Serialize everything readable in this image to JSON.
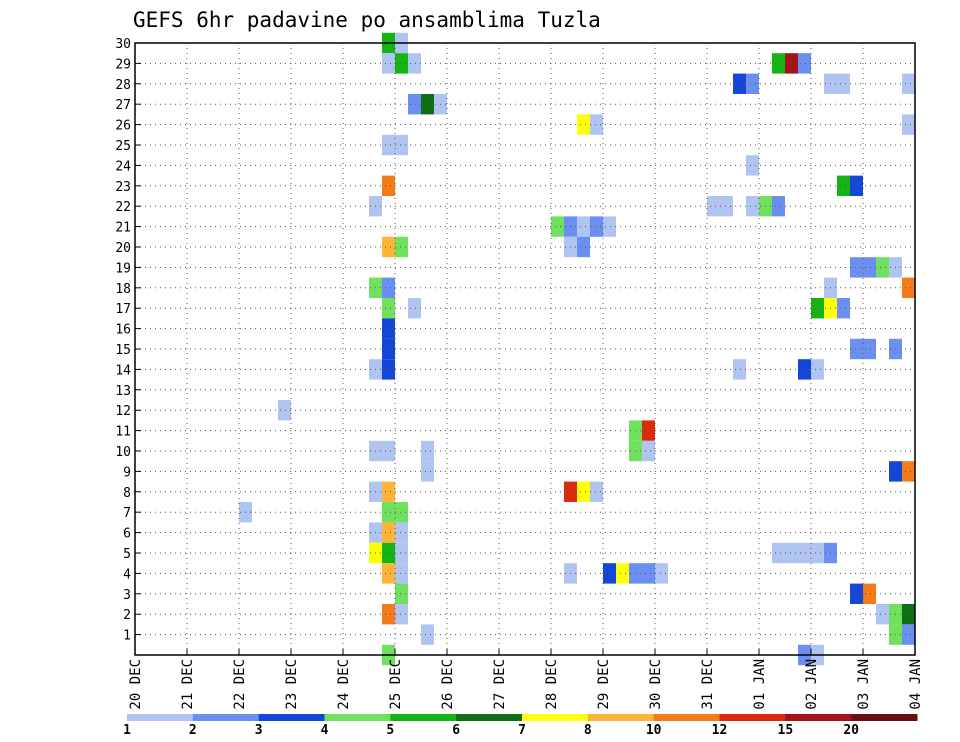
{
  "chart_data": {
    "type": "heatmap",
    "title": "GEFS 6hr padavine po ansamblima Tuzla",
    "xlabel": "",
    "ylabel": "",
    "x_ticks": [
      "20 DEC",
      "21 DEC",
      "22 DEC",
      "23 DEC",
      "24 DEC",
      "25 DEC",
      "26 DEC",
      "27 DEC",
      "28 DEC",
      "29 DEC",
      "30 DEC",
      "31 DEC",
      "01 JAN",
      "02 JAN",
      "03 JAN",
      "04 JAN"
    ],
    "y_ticks": [
      1,
      2,
      3,
      4,
      5,
      6,
      7,
      8,
      9,
      10,
      11,
      12,
      13,
      14,
      15,
      16,
      17,
      18,
      19,
      20,
      21,
      22,
      23,
      24,
      25,
      26,
      27,
      28,
      29,
      30
    ],
    "xlim_days": [
      0,
      15
    ],
    "ylim": [
      0,
      30
    ],
    "grid": true,
    "legend_position": "bottom",
    "color_scale": {
      "colors": [
        "#b0c4f2",
        "#6a8ff0",
        "#1446d8",
        "#6fe15e",
        "#14b414",
        "#0f6e16",
        "#ffff0a",
        "#ffb337",
        "#f47b1a",
        "#db2a0c",
        "#a4121a",
        "#6a0f12"
      ],
      "labels": [
        "1",
        "2",
        "3",
        "4",
        "5",
        "6",
        "7",
        "8",
        "10",
        "12",
        "15",
        "20"
      ]
    },
    "cells": [
      {
        "t": 4.75,
        "m": 30,
        "c": 4
      },
      {
        "t": 5.0,
        "m": 30,
        "c": 0
      },
      {
        "t": 4.75,
        "m": 29,
        "c": 0
      },
      {
        "t": 5.0,
        "m": 29,
        "c": 4
      },
      {
        "t": 5.25,
        "m": 29,
        "c": 0
      },
      {
        "t": 12.25,
        "m": 29,
        "c": 4
      },
      {
        "t": 12.5,
        "m": 29,
        "c": 10
      },
      {
        "t": 12.75,
        "m": 29,
        "c": 1
      },
      {
        "t": 11.5,
        "m": 28,
        "c": 2
      },
      {
        "t": 11.75,
        "m": 28,
        "c": 1
      },
      {
        "t": 13.25,
        "m": 28,
        "c": 0
      },
      {
        "t": 13.5,
        "m": 28,
        "c": 0
      },
      {
        "t": 15.0,
        "m": 28,
        "c": 0
      },
      {
        "t": 5.25,
        "m": 27,
        "c": 1
      },
      {
        "t": 5.5,
        "m": 27,
        "c": 5
      },
      {
        "t": 5.75,
        "m": 27,
        "c": 0
      },
      {
        "t": 8.5,
        "m": 26,
        "c": 6
      },
      {
        "t": 8.75,
        "m": 26,
        "c": 0
      },
      {
        "t": 15.0,
        "m": 26,
        "c": 0
      },
      {
        "t": 4.75,
        "m": 25,
        "c": 0
      },
      {
        "t": 5.0,
        "m": 25,
        "c": 0
      },
      {
        "t": 11.75,
        "m": 24,
        "c": 0
      },
      {
        "t": 4.75,
        "m": 23,
        "c": 8
      },
      {
        "t": 13.5,
        "m": 23,
        "c": 4
      },
      {
        "t": 13.75,
        "m": 23,
        "c": 2
      },
      {
        "t": 4.5,
        "m": 22,
        "c": 0
      },
      {
        "t": 11.0,
        "m": 22,
        "c": 0
      },
      {
        "t": 11.25,
        "m": 22,
        "c": 0
      },
      {
        "t": 11.75,
        "m": 22,
        "c": 0
      },
      {
        "t": 12.0,
        "m": 22,
        "c": 3
      },
      {
        "t": 12.25,
        "m": 22,
        "c": 1
      },
      {
        "t": 8.0,
        "m": 21,
        "c": 3
      },
      {
        "t": 8.25,
        "m": 21,
        "c": 1
      },
      {
        "t": 8.5,
        "m": 21,
        "c": 0
      },
      {
        "t": 8.75,
        "m": 21,
        "c": 1
      },
      {
        "t": 9.0,
        "m": 21,
        "c": 0
      },
      {
        "t": 4.75,
        "m": 20,
        "c": 7
      },
      {
        "t": 5.0,
        "m": 20,
        "c": 3
      },
      {
        "t": 8.25,
        "m": 20,
        "c": 0
      },
      {
        "t": 8.5,
        "m": 20,
        "c": 1
      },
      {
        "t": 13.75,
        "m": 19,
        "c": 1
      },
      {
        "t": 14.0,
        "m": 19,
        "c": 1
      },
      {
        "t": 14.25,
        "m": 19,
        "c": 3
      },
      {
        "t": 14.5,
        "m": 19,
        "c": 0
      },
      {
        "t": 4.5,
        "m": 18,
        "c": 3
      },
      {
        "t": 4.75,
        "m": 18,
        "c": 1
      },
      {
        "t": 13.25,
        "m": 18,
        "c": 0
      },
      {
        "t": 14.75,
        "m": 18,
        "c": 8
      },
      {
        "t": 4.75,
        "m": 17,
        "c": 3
      },
      {
        "t": 5.25,
        "m": 17,
        "c": 0
      },
      {
        "t": 13.0,
        "m": 17,
        "c": 4
      },
      {
        "t": 13.25,
        "m": 17,
        "c": 6
      },
      {
        "t": 13.5,
        "m": 17,
        "c": 1
      },
      {
        "t": 4.75,
        "m": 16,
        "c": 2
      },
      {
        "t": 4.75,
        "m": 15,
        "c": 2
      },
      {
        "t": 13.75,
        "m": 15,
        "c": 1
      },
      {
        "t": 14.0,
        "m": 15,
        "c": 1
      },
      {
        "t": 14.5,
        "m": 15,
        "c": 1
      },
      {
        "t": 4.5,
        "m": 14,
        "c": 0
      },
      {
        "t": 4.75,
        "m": 14,
        "c": 2
      },
      {
        "t": 11.5,
        "m": 14,
        "c": 0
      },
      {
        "t": 12.75,
        "m": 14,
        "c": 2
      },
      {
        "t": 13.0,
        "m": 14,
        "c": 0
      },
      {
        "t": 2.75,
        "m": 12,
        "c": 0
      },
      {
        "t": 9.5,
        "m": 11,
        "c": 3
      },
      {
        "t": 9.75,
        "m": 11,
        "c": 9
      },
      {
        "t": 4.5,
        "m": 10,
        "c": 0
      },
      {
        "t": 4.75,
        "m": 10,
        "c": 0
      },
      {
        "t": 5.5,
        "m": 10,
        "c": 0
      },
      {
        "t": 9.5,
        "m": 10,
        "c": 3
      },
      {
        "t": 9.75,
        "m": 10,
        "c": 0
      },
      {
        "t": 5.5,
        "m": 9,
        "c": 0
      },
      {
        "t": 14.5,
        "m": 9,
        "c": 2
      },
      {
        "t": 14.75,
        "m": 9,
        "c": 8
      },
      {
        "t": 4.5,
        "m": 8,
        "c": 0
      },
      {
        "t": 4.75,
        "m": 8,
        "c": 7
      },
      {
        "t": 8.25,
        "m": 8,
        "c": 9
      },
      {
        "t": 8.5,
        "m": 8,
        "c": 6
      },
      {
        "t": 8.75,
        "m": 8,
        "c": 0
      },
      {
        "t": 2.0,
        "m": 7,
        "c": 0
      },
      {
        "t": 4.75,
        "m": 7,
        "c": 3
      },
      {
        "t": 5.0,
        "m": 7,
        "c": 3
      },
      {
        "t": 4.5,
        "m": 6,
        "c": 0
      },
      {
        "t": 4.75,
        "m": 6,
        "c": 7
      },
      {
        "t": 5.0,
        "m": 6,
        "c": 0
      },
      {
        "t": 4.5,
        "m": 5,
        "c": 6
      },
      {
        "t": 4.75,
        "m": 5,
        "c": 4
      },
      {
        "t": 5.0,
        "m": 5,
        "c": 0
      },
      {
        "t": 12.25,
        "m": 5,
        "c": 0
      },
      {
        "t": 12.5,
        "m": 5,
        "c": 0
      },
      {
        "t": 12.75,
        "m": 5,
        "c": 0
      },
      {
        "t": 13.0,
        "m": 5,
        "c": 0
      },
      {
        "t": 13.25,
        "m": 5,
        "c": 1
      },
      {
        "t": 4.75,
        "m": 4,
        "c": 7
      },
      {
        "t": 5.0,
        "m": 4,
        "c": 0
      },
      {
        "t": 8.25,
        "m": 4,
        "c": 0
      },
      {
        "t": 9.0,
        "m": 4,
        "c": 2
      },
      {
        "t": 9.25,
        "m": 4,
        "c": 6
      },
      {
        "t": 9.5,
        "m": 4,
        "c": 1
      },
      {
        "t": 9.75,
        "m": 4,
        "c": 1
      },
      {
        "t": 10.0,
        "m": 4,
        "c": 0
      },
      {
        "t": 5.0,
        "m": 3,
        "c": 3
      },
      {
        "t": 13.75,
        "m": 3,
        "c": 2
      },
      {
        "t": 14.0,
        "m": 3,
        "c": 8
      },
      {
        "t": 4.75,
        "m": 2,
        "c": 8
      },
      {
        "t": 5.0,
        "m": 2,
        "c": 0
      },
      {
        "t": 14.25,
        "m": 2,
        "c": 0
      },
      {
        "t": 14.5,
        "m": 2,
        "c": 3
      },
      {
        "t": 15.0,
        "m": 2,
        "c": 5
      },
      {
        "t": 5.5,
        "m": 1,
        "c": 0
      },
      {
        "t": 14.5,
        "m": 1,
        "c": 3
      },
      {
        "t": 14.75,
        "m": 1,
        "c": 1
      },
      {
        "t": 4.75,
        "m": 0,
        "c": 3
      },
      {
        "t": 12.75,
        "m": 0,
        "c": 1
      },
      {
        "t": 13.0,
        "m": 0,
        "c": 0
      }
    ]
  }
}
